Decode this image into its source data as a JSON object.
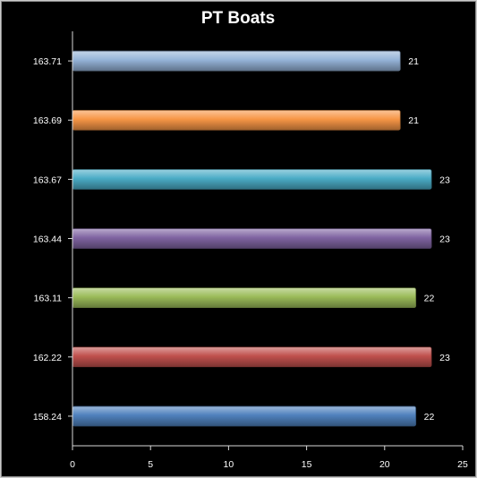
{
  "chart_data": {
    "type": "bar",
    "orientation": "horizontal",
    "title": "PT Boats",
    "xlabel": "",
    "ylabel": "",
    "categories": [
      "158.24",
      "162.22",
      "163.11",
      "163.44",
      "163.67",
      "163.69",
      "163.71"
    ],
    "values": [
      22,
      23,
      22,
      23,
      23,
      21,
      21
    ],
    "colors": [
      "#4f81bd",
      "#c0504d",
      "#9bbb59",
      "#8064a2",
      "#4bacc6",
      "#f79646",
      "#95b3d7"
    ],
    "xlim": [
      0,
      25
    ],
    "x_ticks": [
      "0",
      "5",
      "10",
      "15",
      "20",
      "25"
    ],
    "grid": false,
    "legend": "none",
    "data_labels": true
  }
}
